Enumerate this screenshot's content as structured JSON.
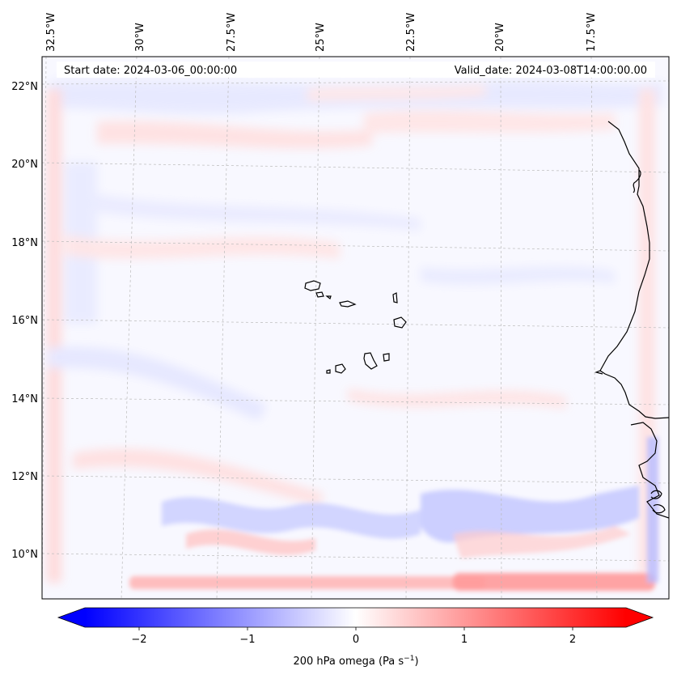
{
  "header": {
    "start_date": "Start date: 2024-03-06_00:00:00",
    "valid_date": "Valid_date: 2024-03-08T14:00:00.00"
  },
  "axes": {
    "lon_labels": [
      "32.5°W",
      "30°W",
      "27.5°W",
      "25°W",
      "22.5°W",
      "20°W",
      "17.5°W"
    ],
    "lat_labels": [
      "22°N",
      "20°N",
      "18°N",
      "16°N",
      "14°N",
      "12°N",
      "10°N"
    ]
  },
  "colorbar": {
    "ticks": [
      "−2",
      "−1",
      "0",
      "1",
      "2"
    ],
    "label": "200 hPa omega (Pa s",
    "label_sup": "−1",
    "label_end": ")",
    "colormap": "bwr",
    "range": [
      -2.6,
      2.6
    ],
    "low_color": "#0000ff",
    "mid_color": "#ffffff",
    "high_color": "#ff0000"
  },
  "map": {
    "gridlines": "dashed light gray",
    "coastline_color": "#000000"
  }
}
